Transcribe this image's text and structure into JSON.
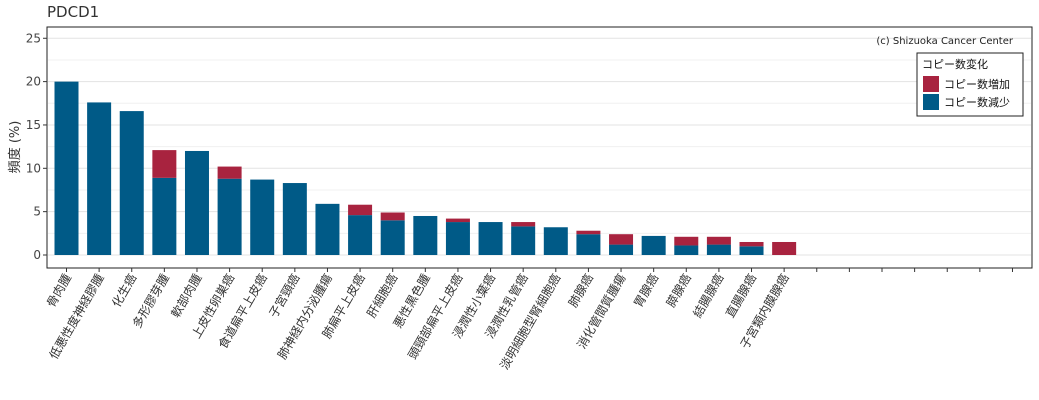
{
  "chart_data": {
    "type": "bar",
    "stacked": true,
    "title": "PDCD1",
    "ylabel": "頻度 (%)",
    "xlabel": "",
    "ylim": [
      0,
      25
    ],
    "yticks": [
      0,
      5,
      10,
      15,
      20,
      25
    ],
    "grid": true,
    "annotation": "(c) Shizuoka Cancer Center",
    "legend_title": "コピー数変化",
    "legend_position": "top-right",
    "categories": [
      "骨肉腫",
      "低悪性度神経膠腫",
      "化生癌",
      "多形膠芽腫",
      "軟部肉腫",
      "上皮性卵巣癌",
      "食道扁平上皮癌",
      "子宮頸癌",
      "肺神経内分泌腫瘍",
      "肺扁平上皮癌",
      "肝細胞癌",
      "悪性黒色腫",
      "頭頸部扁平上皮癌",
      "浸潤性小葉癌",
      "浸潤性乳管癌",
      "淡明細胞型腎細胞癌",
      "肺腺癌",
      "消化管間質腫瘍",
      "胃腺癌",
      "膵腺癌",
      "結腸腺癌",
      "直腸腺癌",
      "子宮類内膜腺癌"
    ],
    "empty_slots": 7,
    "series": [
      {
        "name": "コピー数減少",
        "color": "#005a87",
        "values": [
          20.0,
          17.6,
          16.6,
          8.9,
          12.0,
          8.8,
          8.7,
          8.3,
          5.9,
          4.6,
          4.0,
          4.5,
          3.8,
          3.8,
          3.3,
          3.2,
          2.4,
          1.2,
          2.2,
          1.1,
          1.2,
          1.0,
          0
        ]
      },
      {
        "name": "コピー数増加",
        "color": "#a8233f",
        "values": [
          0,
          0,
          0,
          3.2,
          0,
          1.4,
          0,
          0,
          0,
          1.2,
          0.9,
          0,
          0.4,
          0,
          0.5,
          0,
          0.4,
          1.2,
          0,
          1.0,
          0.9,
          0.5,
          1.5
        ]
      }
    ]
  }
}
